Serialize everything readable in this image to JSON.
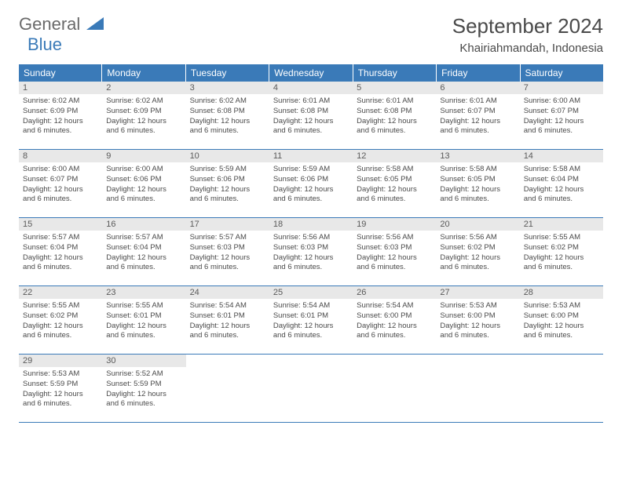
{
  "logo": {
    "general": "General",
    "blue": "Blue"
  },
  "title": "September 2024",
  "location": "Khairiahmandah, Indonesia",
  "colors": {
    "header_bg": "#3a7ab8",
    "header_text": "#ffffff",
    "daynum_bg": "#e8e8e8",
    "text": "#4a4a4a",
    "border": "#3a7ab8"
  },
  "weekdays": [
    "Sunday",
    "Monday",
    "Tuesday",
    "Wednesday",
    "Thursday",
    "Friday",
    "Saturday"
  ],
  "weeks": [
    [
      {
        "num": "1",
        "sunrise": "Sunrise: 6:02 AM",
        "sunset": "Sunset: 6:09 PM",
        "daylight1": "Daylight: 12 hours",
        "daylight2": "and 6 minutes."
      },
      {
        "num": "2",
        "sunrise": "Sunrise: 6:02 AM",
        "sunset": "Sunset: 6:09 PM",
        "daylight1": "Daylight: 12 hours",
        "daylight2": "and 6 minutes."
      },
      {
        "num": "3",
        "sunrise": "Sunrise: 6:02 AM",
        "sunset": "Sunset: 6:08 PM",
        "daylight1": "Daylight: 12 hours",
        "daylight2": "and 6 minutes."
      },
      {
        "num": "4",
        "sunrise": "Sunrise: 6:01 AM",
        "sunset": "Sunset: 6:08 PM",
        "daylight1": "Daylight: 12 hours",
        "daylight2": "and 6 minutes."
      },
      {
        "num": "5",
        "sunrise": "Sunrise: 6:01 AM",
        "sunset": "Sunset: 6:08 PM",
        "daylight1": "Daylight: 12 hours",
        "daylight2": "and 6 minutes."
      },
      {
        "num": "6",
        "sunrise": "Sunrise: 6:01 AM",
        "sunset": "Sunset: 6:07 PM",
        "daylight1": "Daylight: 12 hours",
        "daylight2": "and 6 minutes."
      },
      {
        "num": "7",
        "sunrise": "Sunrise: 6:00 AM",
        "sunset": "Sunset: 6:07 PM",
        "daylight1": "Daylight: 12 hours",
        "daylight2": "and 6 minutes."
      }
    ],
    [
      {
        "num": "8",
        "sunrise": "Sunrise: 6:00 AM",
        "sunset": "Sunset: 6:07 PM",
        "daylight1": "Daylight: 12 hours",
        "daylight2": "and 6 minutes."
      },
      {
        "num": "9",
        "sunrise": "Sunrise: 6:00 AM",
        "sunset": "Sunset: 6:06 PM",
        "daylight1": "Daylight: 12 hours",
        "daylight2": "and 6 minutes."
      },
      {
        "num": "10",
        "sunrise": "Sunrise: 5:59 AM",
        "sunset": "Sunset: 6:06 PM",
        "daylight1": "Daylight: 12 hours",
        "daylight2": "and 6 minutes."
      },
      {
        "num": "11",
        "sunrise": "Sunrise: 5:59 AM",
        "sunset": "Sunset: 6:06 PM",
        "daylight1": "Daylight: 12 hours",
        "daylight2": "and 6 minutes."
      },
      {
        "num": "12",
        "sunrise": "Sunrise: 5:58 AM",
        "sunset": "Sunset: 6:05 PM",
        "daylight1": "Daylight: 12 hours",
        "daylight2": "and 6 minutes."
      },
      {
        "num": "13",
        "sunrise": "Sunrise: 5:58 AM",
        "sunset": "Sunset: 6:05 PM",
        "daylight1": "Daylight: 12 hours",
        "daylight2": "and 6 minutes."
      },
      {
        "num": "14",
        "sunrise": "Sunrise: 5:58 AM",
        "sunset": "Sunset: 6:04 PM",
        "daylight1": "Daylight: 12 hours",
        "daylight2": "and 6 minutes."
      }
    ],
    [
      {
        "num": "15",
        "sunrise": "Sunrise: 5:57 AM",
        "sunset": "Sunset: 6:04 PM",
        "daylight1": "Daylight: 12 hours",
        "daylight2": "and 6 minutes."
      },
      {
        "num": "16",
        "sunrise": "Sunrise: 5:57 AM",
        "sunset": "Sunset: 6:04 PM",
        "daylight1": "Daylight: 12 hours",
        "daylight2": "and 6 minutes."
      },
      {
        "num": "17",
        "sunrise": "Sunrise: 5:57 AM",
        "sunset": "Sunset: 6:03 PM",
        "daylight1": "Daylight: 12 hours",
        "daylight2": "and 6 minutes."
      },
      {
        "num": "18",
        "sunrise": "Sunrise: 5:56 AM",
        "sunset": "Sunset: 6:03 PM",
        "daylight1": "Daylight: 12 hours",
        "daylight2": "and 6 minutes."
      },
      {
        "num": "19",
        "sunrise": "Sunrise: 5:56 AM",
        "sunset": "Sunset: 6:03 PM",
        "daylight1": "Daylight: 12 hours",
        "daylight2": "and 6 minutes."
      },
      {
        "num": "20",
        "sunrise": "Sunrise: 5:56 AM",
        "sunset": "Sunset: 6:02 PM",
        "daylight1": "Daylight: 12 hours",
        "daylight2": "and 6 minutes."
      },
      {
        "num": "21",
        "sunrise": "Sunrise: 5:55 AM",
        "sunset": "Sunset: 6:02 PM",
        "daylight1": "Daylight: 12 hours",
        "daylight2": "and 6 minutes."
      }
    ],
    [
      {
        "num": "22",
        "sunrise": "Sunrise: 5:55 AM",
        "sunset": "Sunset: 6:02 PM",
        "daylight1": "Daylight: 12 hours",
        "daylight2": "and 6 minutes."
      },
      {
        "num": "23",
        "sunrise": "Sunrise: 5:55 AM",
        "sunset": "Sunset: 6:01 PM",
        "daylight1": "Daylight: 12 hours",
        "daylight2": "and 6 minutes."
      },
      {
        "num": "24",
        "sunrise": "Sunrise: 5:54 AM",
        "sunset": "Sunset: 6:01 PM",
        "daylight1": "Daylight: 12 hours",
        "daylight2": "and 6 minutes."
      },
      {
        "num": "25",
        "sunrise": "Sunrise: 5:54 AM",
        "sunset": "Sunset: 6:01 PM",
        "daylight1": "Daylight: 12 hours",
        "daylight2": "and 6 minutes."
      },
      {
        "num": "26",
        "sunrise": "Sunrise: 5:54 AM",
        "sunset": "Sunset: 6:00 PM",
        "daylight1": "Daylight: 12 hours",
        "daylight2": "and 6 minutes."
      },
      {
        "num": "27",
        "sunrise": "Sunrise: 5:53 AM",
        "sunset": "Sunset: 6:00 PM",
        "daylight1": "Daylight: 12 hours",
        "daylight2": "and 6 minutes."
      },
      {
        "num": "28",
        "sunrise": "Sunrise: 5:53 AM",
        "sunset": "Sunset: 6:00 PM",
        "daylight1": "Daylight: 12 hours",
        "daylight2": "and 6 minutes."
      }
    ],
    [
      {
        "num": "29",
        "sunrise": "Sunrise: 5:53 AM",
        "sunset": "Sunset: 5:59 PM",
        "daylight1": "Daylight: 12 hours",
        "daylight2": "and 6 minutes."
      },
      {
        "num": "30",
        "sunrise": "Sunrise: 5:52 AM",
        "sunset": "Sunset: 5:59 PM",
        "daylight1": "Daylight: 12 hours",
        "daylight2": "and 6 minutes."
      },
      null,
      null,
      null,
      null,
      null
    ]
  ]
}
